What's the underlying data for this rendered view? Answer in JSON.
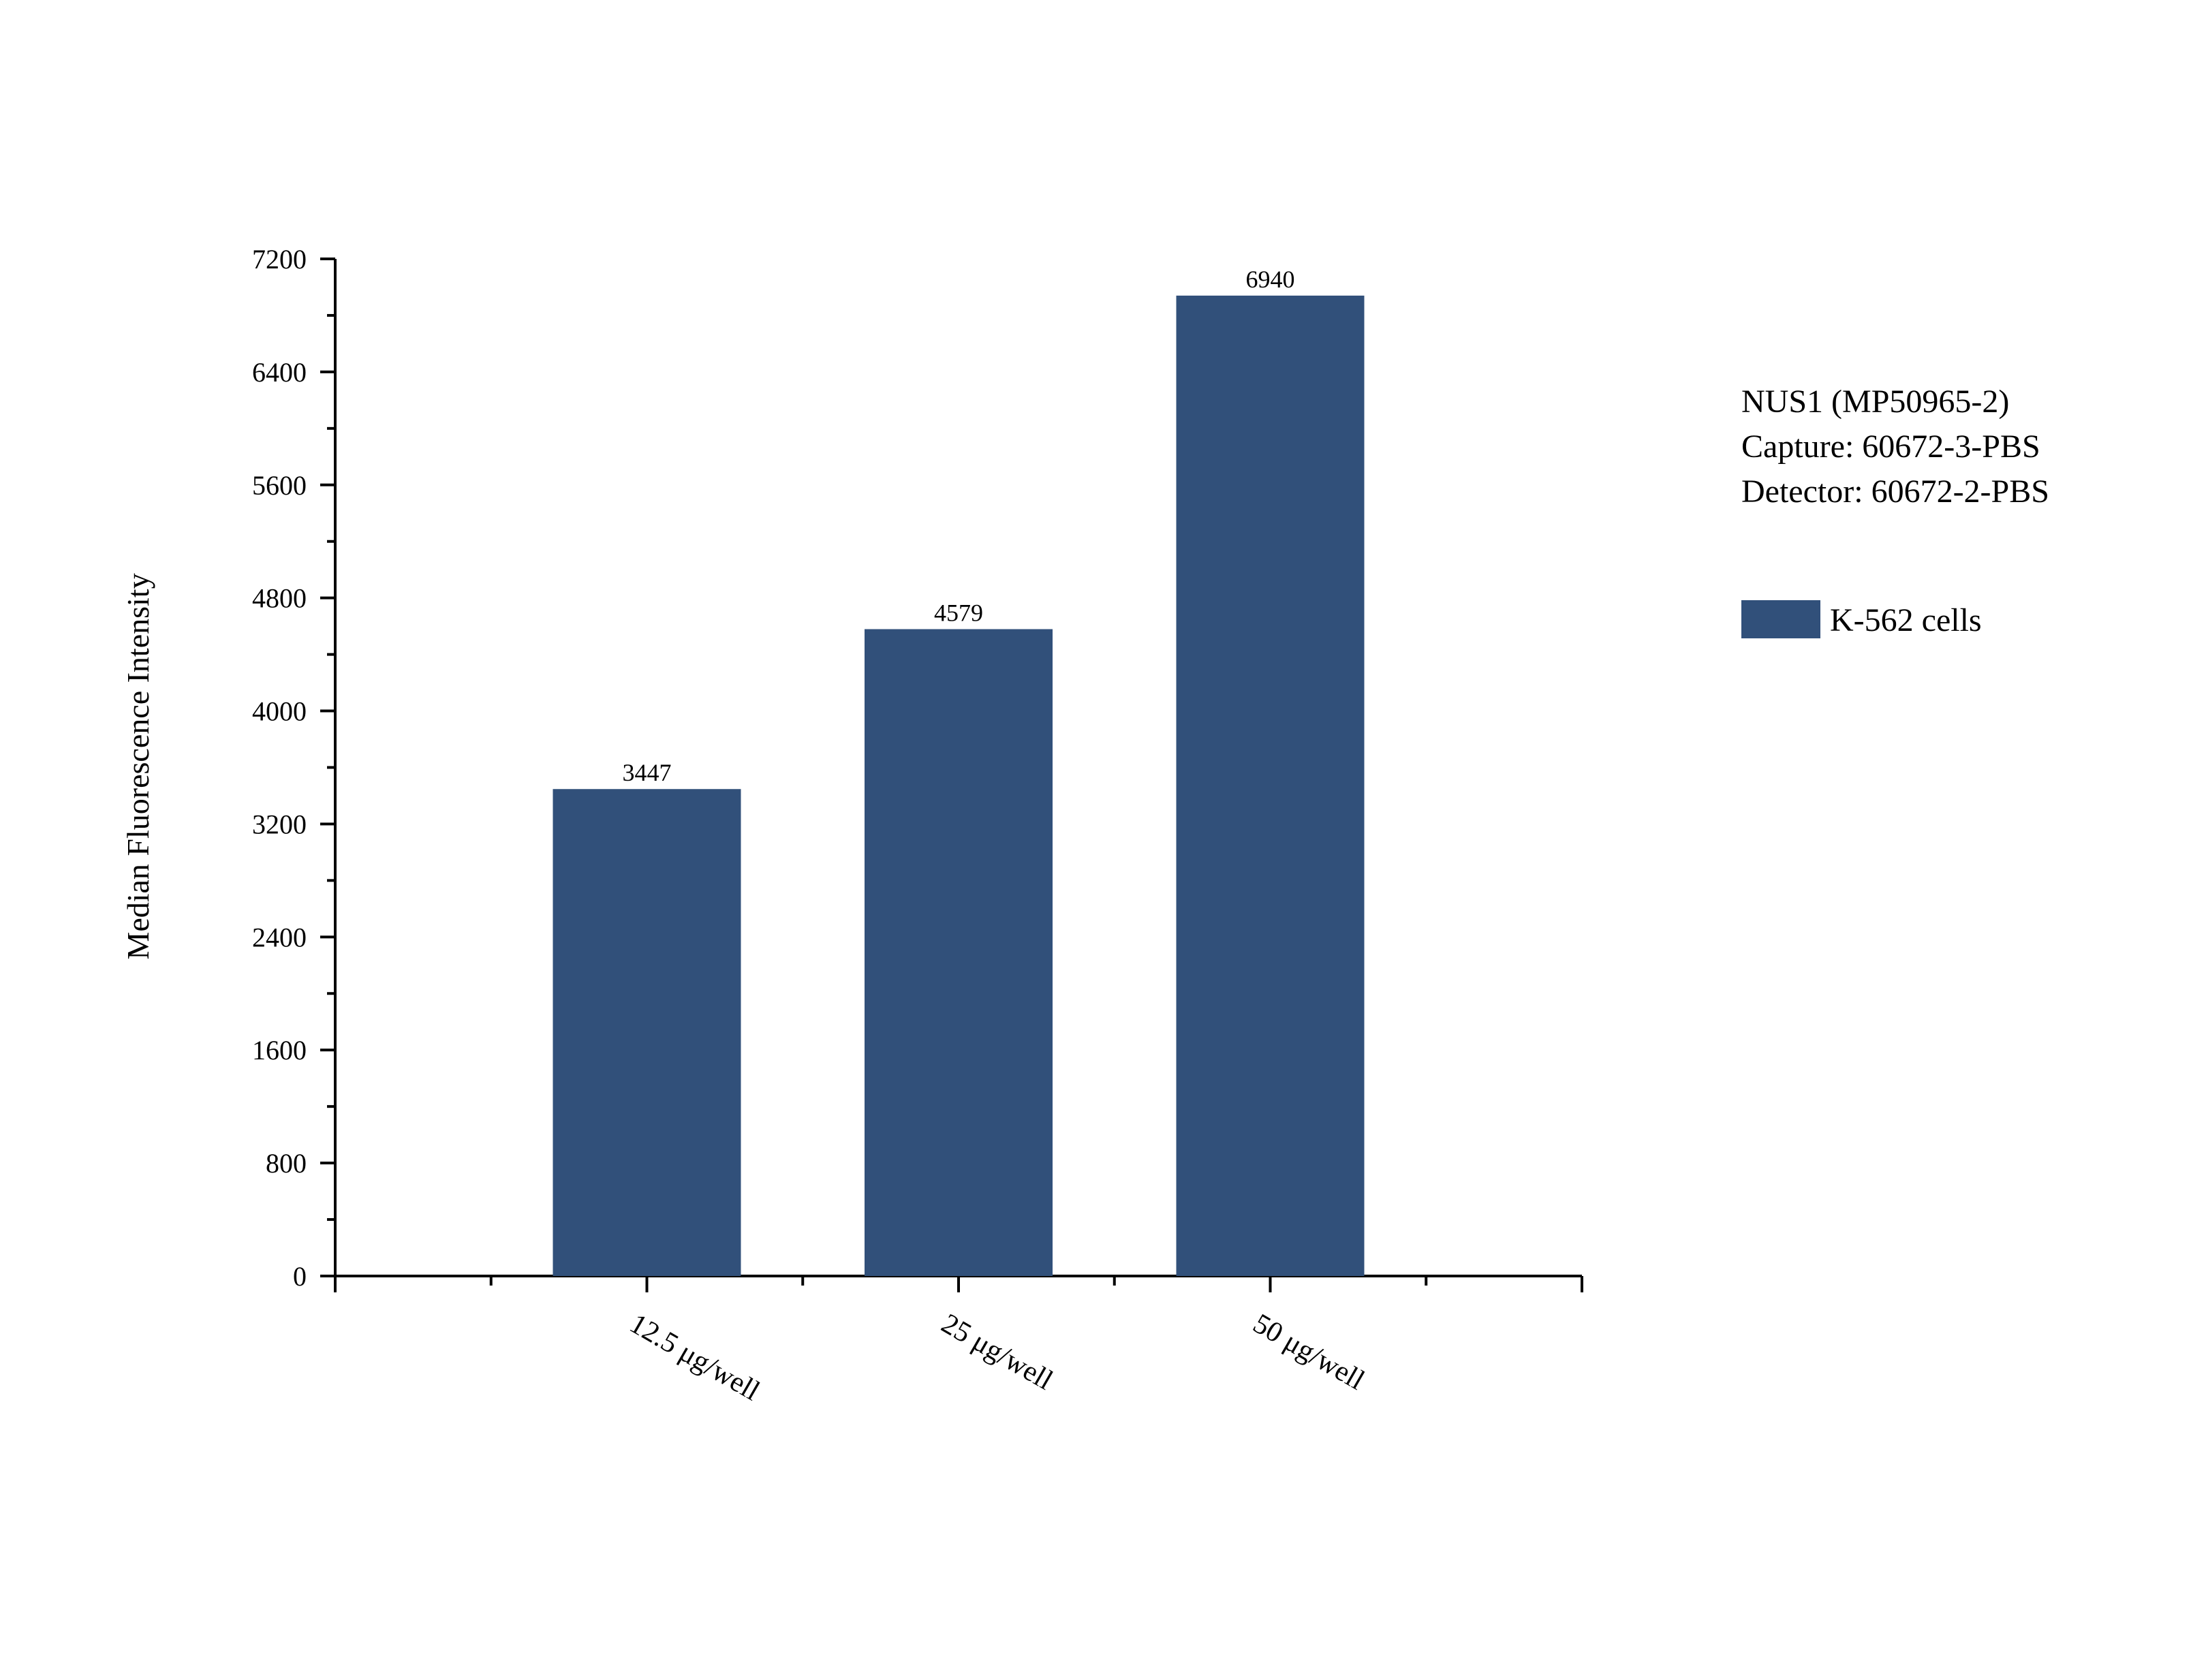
{
  "chart_data": {
    "type": "bar",
    "categories": [
      "12.5 μg/well",
      "25 μg/well",
      "50 μg/well"
    ],
    "series": [
      {
        "name": "K-562 cells",
        "values": [
          3447,
          4579,
          6940
        ],
        "color": "#31507a"
      }
    ],
    "data_labels": [
      "3447",
      "4579",
      "6940"
    ],
    "ylabel": "Median Fluorescence Intensity",
    "xlabel": "",
    "ylim": [
      0,
      7200
    ],
    "yticks": [
      0,
      800,
      1600,
      2400,
      3200,
      4000,
      4800,
      5600,
      6400,
      7200
    ],
    "ytick_labels": [
      "0",
      "800",
      "1600",
      "2400",
      "3200",
      "4000",
      "4800",
      "5600",
      "6400",
      "7200"
    ],
    "grid": false,
    "legend_position": "right",
    "annotation_lines": [
      "NUS1 (MP50965-2)",
      "Capture: 60672-3-PBS",
      "Detector: 60672-2-PBS"
    ]
  }
}
